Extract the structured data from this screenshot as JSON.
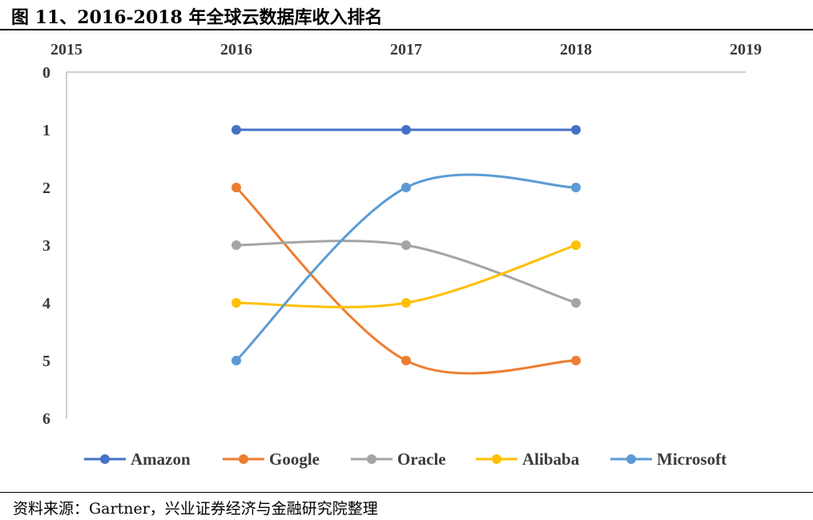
{
  "figure": {
    "title": "图 11、2016-2018 年全球云数据库收入排名",
    "source": "资料来源：Gartner，兴业证券经济与金融研究院整理"
  },
  "chart_data": {
    "type": "line",
    "title": "图 11、2016-2018 年全球云数据库收入排名",
    "xlabel": "",
    "ylabel": "",
    "x_ticks": [
      "2015",
      "2016",
      "2017",
      "2018",
      "2019"
    ],
    "x_range": [
      2015,
      2019
    ],
    "y_ticks": [
      "0",
      "1",
      "2",
      "3",
      "4",
      "5",
      "6"
    ],
    "y_range": [
      0,
      6
    ],
    "y_inverted": true,
    "x_axis_position": "top",
    "grid": false,
    "smooth": true,
    "legend_position": "bottom",
    "x": [
      2016,
      2017,
      2018
    ],
    "series": [
      {
        "name": "Amazon",
        "color": "#4472c4",
        "values": [
          1,
          1,
          1
        ]
      },
      {
        "name": "Google",
        "color": "#ed7d31",
        "values": [
          2,
          5,
          5
        ]
      },
      {
        "name": "Oracle",
        "color": "#a5a5a5",
        "values": [
          3,
          3,
          4
        ]
      },
      {
        "name": "Alibaba",
        "color": "#ffc000",
        "values": [
          4,
          4,
          3
        ]
      },
      {
        "name": "Microsoft",
        "color": "#5b9bd5",
        "values": [
          5,
          2,
          2
        ]
      }
    ]
  }
}
